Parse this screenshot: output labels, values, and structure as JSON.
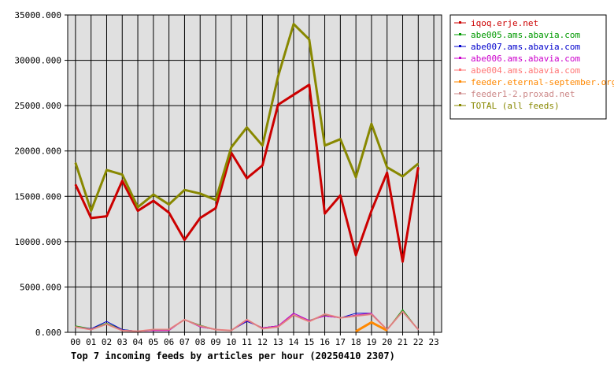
{
  "chart_data": {
    "type": "line",
    "title": "Top 7 incoming feeds by articles per hour (20250410 2307)",
    "xlabel": "",
    "ylabel": "",
    "categories": [
      "00",
      "01",
      "02",
      "03",
      "04",
      "05",
      "06",
      "07",
      "08",
      "09",
      "10",
      "11",
      "12",
      "13",
      "14",
      "15",
      "16",
      "17",
      "18",
      "19",
      "20",
      "21",
      "22",
      "23"
    ],
    "ylim": [
      0,
      35000
    ],
    "yticks": [
      "0.000",
      "5000.000",
      "10000.000",
      "15000.000",
      "20000.000",
      "25000.000",
      "30000.000",
      "35000.000"
    ],
    "ytick_values": [
      0,
      5000,
      10000,
      15000,
      20000,
      25000,
      30000,
      35000
    ],
    "grid": true,
    "legend_position": "right",
    "plot_background": "#e0e0e0",
    "series": [
      {
        "name": "iqoq.erje.net",
        "color": "#cc0000",
        "width": 3,
        "values": [
          16300,
          12600,
          12800,
          16700,
          13400,
          14500,
          13200,
          10200,
          12600,
          13700,
          19800,
          17000,
          18400,
          25100,
          26200,
          27300,
          13100,
          15100,
          8500,
          13400,
          17600,
          7800,
          18200,
          null
        ]
      },
      {
        "name": "abe005.ams.abavia.com",
        "color": "#009900",
        "width": 1,
        "values": [
          700,
          400,
          1000,
          300,
          100,
          300,
          300,
          1400,
          800,
          300,
          200,
          1300,
          500,
          700,
          1900,
          1300,
          1900,
          1600,
          1900,
          2000,
          300,
          2500,
          300,
          null
        ]
      },
      {
        "name": "abe007.ams.abavia.com",
        "color": "#0000cc",
        "width": 1,
        "values": [
          600,
          400,
          1200,
          300,
          100,
          200,
          200,
          1400,
          600,
          300,
          200,
          1200,
          500,
          700,
          2100,
          1300,
          1800,
          1600,
          2100,
          2100,
          300,
          2300,
          300,
          null
        ]
      },
      {
        "name": "abe006.ams.abavia.com",
        "color": "#cc00cc",
        "width": 1,
        "values": [
          600,
          300,
          900,
          200,
          100,
          200,
          200,
          1400,
          600,
          300,
          200,
          1300,
          500,
          700,
          2100,
          1300,
          1800,
          1600,
          1900,
          2100,
          300,
          2300,
          300,
          null
        ]
      },
      {
        "name": "abe004.ams.abavia.com",
        "color": "#ff7777",
        "width": 2,
        "values": [
          600,
          300,
          900,
          200,
          100,
          300,
          300,
          1400,
          700,
          300,
          200,
          1400,
          400,
          600,
          1900,
          1200,
          2000,
          1600,
          1800,
          2000,
          300,
          2300,
          300,
          null
        ]
      },
      {
        "name": "feeder.eternal-september.org",
        "color": "#ff8800",
        "width": 3,
        "values": [
          null,
          null,
          null,
          null,
          null,
          null,
          null,
          null,
          null,
          null,
          null,
          null,
          null,
          null,
          null,
          null,
          null,
          null,
          100,
          1100,
          200,
          null,
          null,
          null
        ]
      },
      {
        "name": "feeder1-2.proxad.net",
        "color": "#cc8888",
        "width": 1,
        "values": [
          600,
          300,
          900,
          200,
          100,
          300,
          300,
          1400,
          700,
          300,
          200,
          1400,
          400,
          600,
          1900,
          1200,
          2000,
          1600,
          1800,
          2000,
          300,
          2300,
          300,
          null
        ]
      },
      {
        "name": "TOTAL (all feeds)",
        "color": "#888800",
        "width": 3,
        "values": [
          18700,
          13400,
          17900,
          17400,
          13800,
          15200,
          14100,
          15700,
          15300,
          14600,
          20400,
          22600,
          20600,
          28200,
          34000,
          32300,
          20600,
          21300,
          17100,
          23000,
          18200,
          17200,
          18600,
          null
        ]
      }
    ]
  }
}
